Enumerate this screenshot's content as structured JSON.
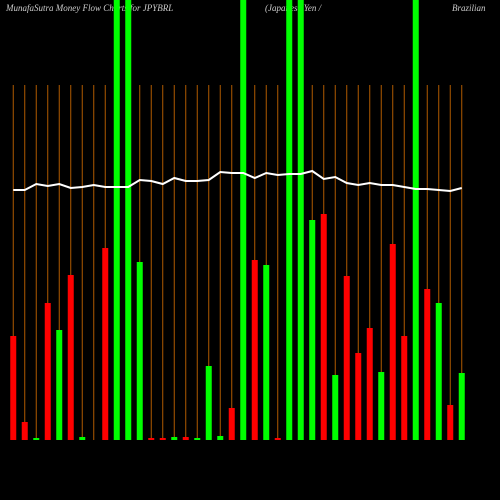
{
  "chart_data": {
    "type": "bar",
    "title": [
      "MunafaSutra  Money Flow  Charts for JPYBRL",
      "(Japanese Yen  /",
      "Brazilian"
    ],
    "categories": [
      null,
      null,
      null,
      null,
      null,
      null,
      null,
      null,
      null,
      null,
      null,
      null,
      null,
      null,
      null,
      null,
      null,
      null,
      null,
      null,
      null,
      null,
      null,
      null,
      null,
      null,
      null,
      null,
      null,
      null,
      null,
      null,
      null,
      null,
      null,
      null,
      null,
      null,
      null,
      null
    ],
    "values": [
      104,
      18,
      2,
      137,
      110,
      165,
      3,
      0,
      192,
      440,
      440,
      178,
      2,
      2,
      3,
      3,
      2,
      74,
      4,
      32,
      440,
      180,
      175,
      2,
      440,
      440,
      220,
      226,
      65,
      164,
      87,
      112,
      68,
      196,
      104,
      440,
      151,
      137,
      35,
      67
    ],
    "colors": [
      "#ff0000",
      "#ff0000",
      "#00ff00",
      "#ff0000",
      "#00ff00",
      "#ff0000",
      "#00ff00",
      "#00ff00",
      "#ff0000",
      "#00ff00",
      "#00ff00",
      "#00ff00",
      "#ff0000",
      "#ff0000",
      "#00ff00",
      "#ff0000",
      "#00ff00",
      "#00ff00",
      "#00ff00",
      "#ff0000",
      "#00ff00",
      "#ff0000",
      "#00ff00",
      "#ff0000",
      "#00ff00",
      "#00ff00",
      "#00ff00",
      "#ff0000",
      "#00ff00",
      "#ff0000",
      "#ff0000",
      "#ff0000",
      "#00ff00",
      "#ff0000",
      "#ff0000",
      "#00ff00",
      "#ff0000",
      "#00ff00",
      "#ff0000",
      "#00ff00"
    ],
    "line": {
      "color": "#ffffff",
      "values": [
        250,
        250,
        256,
        254,
        256,
        252,
        253,
        255,
        253,
        253,
        253,
        260,
        259,
        256,
        262,
        259,
        259,
        260,
        268,
        267,
        267,
        262,
        267,
        265,
        266,
        266,
        269,
        261,
        263,
        257,
        255,
        257,
        255,
        255,
        253,
        251,
        251,
        250,
        249,
        252
      ]
    },
    "ylim": [
      0,
      440
    ],
    "grid": true,
    "grid_color": "#b05a00",
    "background": "#000000"
  }
}
